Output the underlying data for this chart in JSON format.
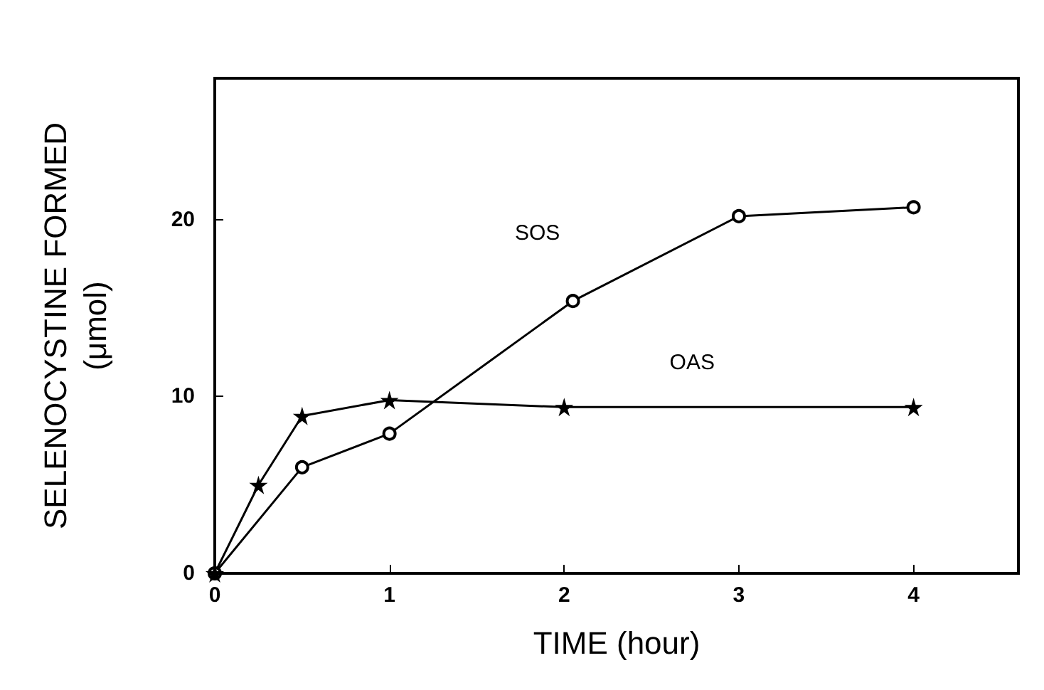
{
  "chart_data": {
    "type": "line",
    "xlabel": "TIME (hour)",
    "ylabel": "SELENOCYSTINE FORMED\n(μmol)",
    "xlim": [
      0,
      4.6
    ],
    "ylim": [
      0,
      28
    ],
    "xticks": [
      0,
      1,
      2,
      3,
      4
    ],
    "yticks": [
      0,
      10,
      20
    ],
    "grid": false,
    "legend": false,
    "line_style": "solid",
    "series": [
      {
        "name": "SOS",
        "color": "#000000",
        "marker": "circle",
        "x": [
          0,
          0.5,
          1,
          2.05,
          3,
          4
        ],
        "values": [
          0,
          6,
          7.9,
          15.4,
          20.2,
          20.7
        ]
      },
      {
        "name": "OAS",
        "color": "#000000",
        "marker": "star",
        "x": [
          0,
          0.25,
          0.5,
          1,
          2,
          4
        ],
        "values": [
          0,
          5,
          8.9,
          9.8,
          9.4,
          9.4
        ]
      }
    ]
  }
}
